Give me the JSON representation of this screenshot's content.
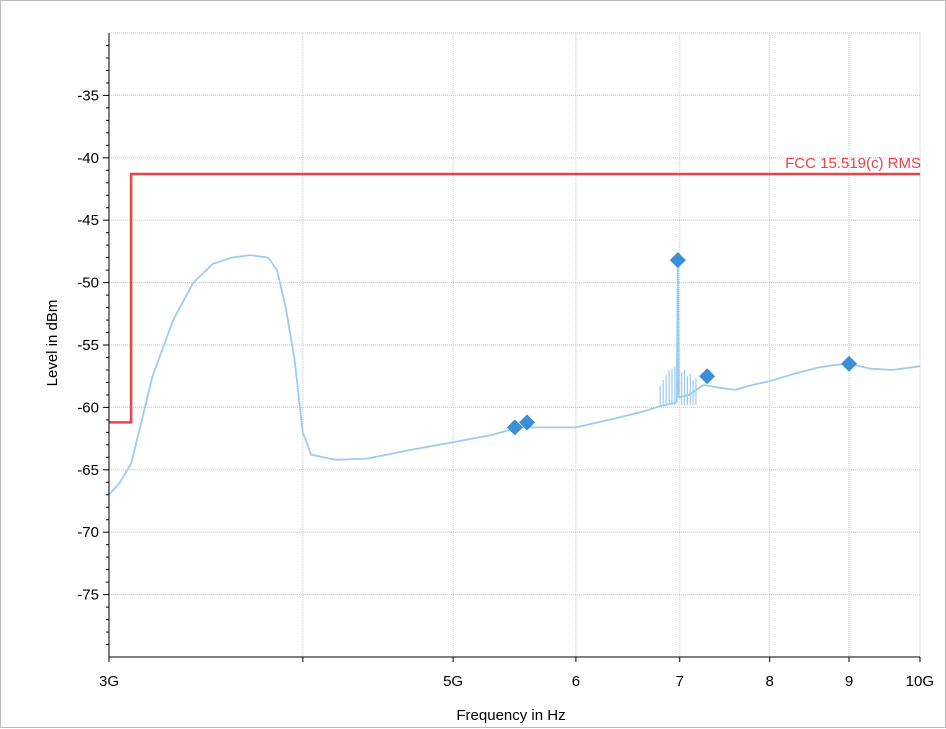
{
  "chart_data": {
    "type": "line",
    "title": "",
    "xlabel": "Frequency in Hz",
    "ylabel": "Level in dBm",
    "x_scale": "log",
    "xlim": [
      3000000000,
      10000000000
    ],
    "ylim": [
      -80,
      -30
    ],
    "grid": true,
    "x_ticks": [
      {
        "value": 3000000000,
        "label": "3G"
      },
      {
        "value": 5000000000,
        "label": "5G"
      },
      {
        "value": 6000000000,
        "label": "6"
      },
      {
        "value": 7000000000,
        "label": "7"
      },
      {
        "value": 8000000000,
        "label": "8"
      },
      {
        "value": 9000000000,
        "label": "9"
      },
      {
        "value": 10000000000,
        "label": "10G"
      }
    ],
    "x_grid_values": [
      3000000000,
      4000000000,
      5000000000,
      6000000000,
      7000000000,
      8000000000,
      9000000000,
      10000000000
    ],
    "y_ticks": [
      {
        "value": -35,
        "label": "-35"
      },
      {
        "value": -40,
        "label": "-40"
      },
      {
        "value": -45,
        "label": "-45"
      },
      {
        "value": -50,
        "label": "-50"
      },
      {
        "value": -55,
        "label": "-55"
      },
      {
        "value": -60,
        "label": "-60"
      },
      {
        "value": -65,
        "label": "-65"
      },
      {
        "value": -70,
        "label": "-70"
      },
      {
        "value": -75,
        "label": "-75"
      }
    ],
    "y_grid_values": [
      -30,
      -35,
      -40,
      -45,
      -50,
      -55,
      -60,
      -65,
      -70,
      -75
    ],
    "limit_line": {
      "name": "FCC 15.519(c) RMS",
      "color": "#e8434b",
      "points": [
        [
          3000000000,
          -61.2
        ],
        [
          3100000000,
          -61.2
        ],
        [
          3100000000,
          -41.3
        ],
        [
          10000000000,
          -41.3
        ]
      ]
    },
    "series": [
      {
        "color": "#9ccbf0",
        "points": [
          [
            3000000000,
            -67.0
          ],
          [
            3050000000,
            -66.0
          ],
          [
            3100000000,
            -64.5
          ],
          [
            3150000000,
            -61.0
          ],
          [
            3200000000,
            -57.5
          ],
          [
            3300000000,
            -53.0
          ],
          [
            3400000000,
            -50.0
          ],
          [
            3500000000,
            -48.5
          ],
          [
            3600000000,
            -48.0
          ],
          [
            3700000000,
            -47.8
          ],
          [
            3800000000,
            -48.0
          ],
          [
            3850000000,
            -49.0
          ],
          [
            3900000000,
            -52.0
          ],
          [
            3950000000,
            -56.0
          ],
          [
            4000000000,
            -62.0
          ],
          [
            4050000000,
            -63.8
          ],
          [
            4200000000,
            -64.2
          ],
          [
            4400000000,
            -64.1
          ],
          [
            4700000000,
            -63.4
          ],
          [
            5000000000,
            -62.8
          ],
          [
            5300000000,
            -62.2
          ],
          [
            5500000000,
            -61.6
          ],
          [
            5700000000,
            -61.6
          ],
          [
            6000000000,
            -61.6
          ],
          [
            6300000000,
            -61.0
          ],
          [
            6600000000,
            -60.4
          ],
          [
            6800000000,
            -59.9
          ],
          [
            6970000000,
            -59.6
          ],
          [
            6980000000,
            -48.2
          ],
          [
            6990000000,
            -59.2
          ],
          [
            7100000000,
            -59.0
          ],
          [
            7250000000,
            -58.2
          ],
          [
            7400000000,
            -58.4
          ],
          [
            7600000000,
            -58.6
          ],
          [
            7800000000,
            -58.2
          ],
          [
            8000000000,
            -57.9
          ],
          [
            8300000000,
            -57.3
          ],
          [
            8600000000,
            -56.8
          ],
          [
            8800000000,
            -56.6
          ],
          [
            9000000000,
            -56.5
          ],
          [
            9300000000,
            -56.9
          ],
          [
            9600000000,
            -57.0
          ],
          [
            10000000000,
            -56.7
          ]
        ]
      }
    ],
    "spurs": {
      "color": "#9ccbf0",
      "base": -59.8,
      "points": [
        [
          6800000000,
          -58.3
        ],
        [
          6830000000,
          -57.8
        ],
        [
          6860000000,
          -57.4
        ],
        [
          6890000000,
          -57.0
        ],
        [
          6920000000,
          -56.9
        ],
        [
          6950000000,
          -56.7
        ],
        [
          7020000000,
          -57.2
        ],
        [
          7050000000,
          -57.0
        ],
        [
          7080000000,
          -57.5
        ],
        [
          7110000000,
          -57.3
        ],
        [
          7140000000,
          -57.8
        ],
        [
          7170000000,
          -57.6
        ]
      ]
    },
    "markers": {
      "color": "#3a8fd8",
      "points": [
        [
          5480000000,
          -61.6
        ],
        [
          5580000000,
          -61.2
        ],
        [
          6980000000,
          -48.2
        ],
        [
          7290000000,
          -57.5
        ],
        [
          9000000000,
          -56.5
        ]
      ]
    },
    "colors": {
      "grid": "#c8c8c8",
      "axis": "#000000"
    }
  }
}
